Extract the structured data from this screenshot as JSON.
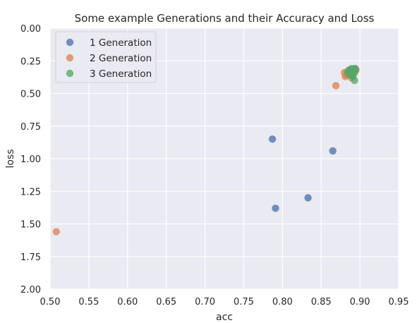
{
  "chart_data": {
    "type": "scatter",
    "title": "Some example Generations and their Accuracy and Loss",
    "xlabel": "acc",
    "ylabel": "loss",
    "xlim": [
      0.5,
      0.95
    ],
    "ylim": [
      2.0,
      0.0
    ],
    "y_inverted": true,
    "grid": true,
    "legend_position": "top-left",
    "x_ticks": [
      "0.50",
      "0.55",
      "0.60",
      "0.65",
      "0.70",
      "0.75",
      "0.80",
      "0.85",
      "0.90",
      "0.95"
    ],
    "y_ticks": [
      "0.00",
      "0.25",
      "0.50",
      "0.75",
      "1.00",
      "1.25",
      "1.50",
      "1.75",
      "2.00"
    ],
    "colors": {
      "plot_background": "#eaeaf2",
      "grid": "#ffffff"
    },
    "series": [
      {
        "name": "1 Generation",
        "color": "#4c72b0",
        "points": [
          {
            "x": 0.787,
            "y": 0.85
          },
          {
            "x": 0.865,
            "y": 0.94
          },
          {
            "x": 0.833,
            "y": 1.3
          },
          {
            "x": 0.791,
            "y": 1.38
          },
          {
            "x": 0.892,
            "y": 0.32
          },
          {
            "x": 0.888,
            "y": 0.34
          },
          {
            "x": 0.894,
            "y": 0.31
          },
          {
            "x": 0.89,
            "y": 0.36
          }
        ]
      },
      {
        "name": "2 Generation",
        "color": "#dd8452",
        "points": [
          {
            "x": 0.508,
            "y": 1.56
          },
          {
            "x": 0.869,
            "y": 0.44
          },
          {
            "x": 0.88,
            "y": 0.34
          },
          {
            "x": 0.881,
            "y": 0.37
          },
          {
            "x": 0.884,
            "y": 0.33
          },
          {
            "x": 0.886,
            "y": 0.35
          },
          {
            "x": 0.888,
            "y": 0.32
          },
          {
            "x": 0.889,
            "y": 0.38
          },
          {
            "x": 0.891,
            "y": 0.36
          },
          {
            "x": 0.893,
            "y": 0.33
          },
          {
            "x": 0.895,
            "y": 0.32
          },
          {
            "x": 0.887,
            "y": 0.35
          },
          {
            "x": 0.883,
            "y": 0.36
          }
        ]
      },
      {
        "name": "3 Generation",
        "color": "#55a868",
        "points": [
          {
            "x": 0.884,
            "y": 0.34
          },
          {
            "x": 0.886,
            "y": 0.32
          },
          {
            "x": 0.888,
            "y": 0.33
          },
          {
            "x": 0.889,
            "y": 0.31
          },
          {
            "x": 0.89,
            "y": 0.35
          },
          {
            "x": 0.891,
            "y": 0.33
          },
          {
            "x": 0.892,
            "y": 0.31
          },
          {
            "x": 0.893,
            "y": 0.34
          },
          {
            "x": 0.894,
            "y": 0.32
          },
          {
            "x": 0.893,
            "y": 0.4
          },
          {
            "x": 0.887,
            "y": 0.36
          },
          {
            "x": 0.891,
            "y": 0.37
          }
        ]
      }
    ]
  }
}
